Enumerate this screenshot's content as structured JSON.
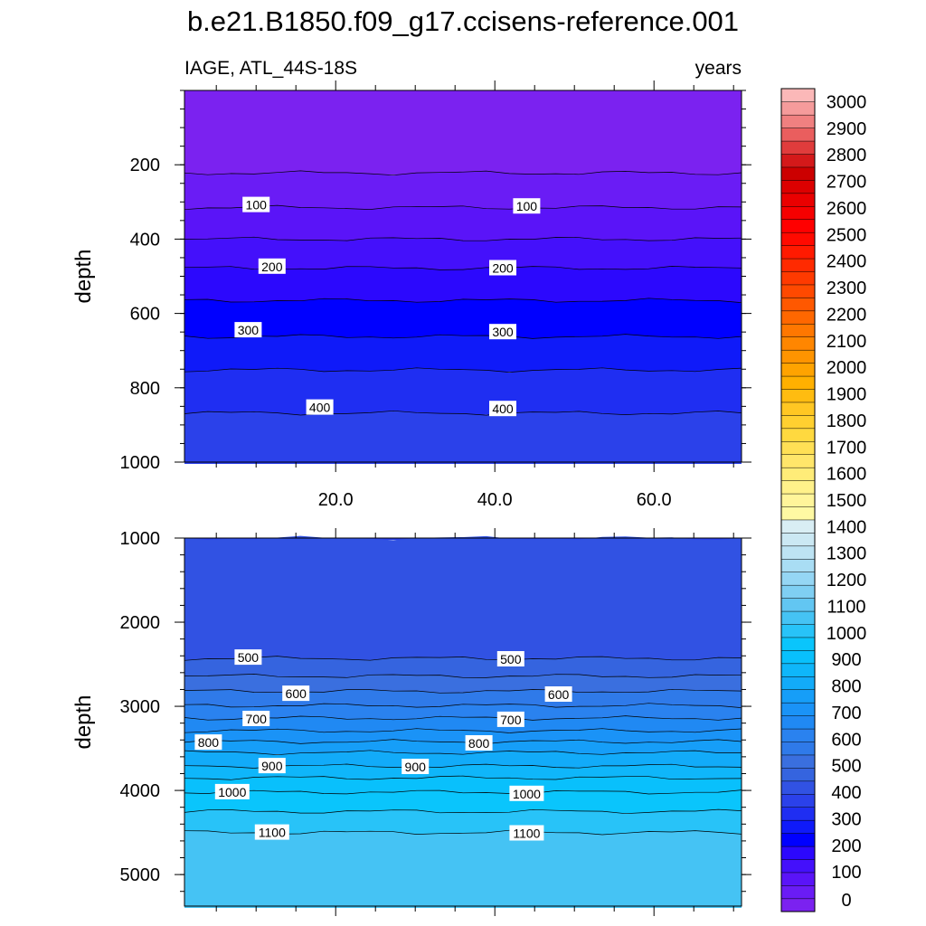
{
  "chart_data": {
    "type": "contour",
    "title": "b.e21.B1850.f09_g17.ccisens-reference.001",
    "subtitle_left": "IAGE, ATL_44S-18S",
    "subtitle_right": "years",
    "ylabel": "depth",
    "xlim": [
      1,
      71
    ],
    "x_ticks": [
      20,
      40,
      60
    ],
    "x_tick_labels": [
      "20.0",
      "40.0",
      "60.0"
    ],
    "top_panel": {
      "ylim": [
        0,
        1000
      ],
      "y_ticks": [
        200,
        400,
        600,
        800,
        1000
      ],
      "y_tick_labels": [
        "200",
        "400",
        "600",
        "800",
        "1000"
      ],
      "contour_depths": [
        {
          "level": 50,
          "depth": 222
        },
        {
          "level": 100,
          "depth": 315
        },
        {
          "level": 150,
          "depth": 400
        },
        {
          "level": 200,
          "depth": 478
        },
        {
          "level": 250,
          "depth": 565
        },
        {
          "level": 300,
          "depth": 662
        },
        {
          "level": 350,
          "depth": 752
        },
        {
          "level": 400,
          "depth": 868
        }
      ],
      "contour_labels": [
        {
          "text": "100",
          "x": 10,
          "depth": 308
        },
        {
          "text": "100",
          "x": 44,
          "depth": 312
        },
        {
          "text": "200",
          "x": 12,
          "depth": 474
        },
        {
          "text": "200",
          "x": 41,
          "depth": 478
        },
        {
          "text": "300",
          "x": 9,
          "depth": 645
        },
        {
          "text": "300",
          "x": 41,
          "depth": 650
        },
        {
          "text": "400",
          "x": 18,
          "depth": 853
        },
        {
          "text": "400",
          "x": 41,
          "depth": 857
        }
      ]
    },
    "bottom_panel": {
      "ylim": [
        1000,
        5375
      ],
      "y_ticks": [
        1000,
        2000,
        3000,
        4000,
        5000
      ],
      "y_tick_labels": [
        "1000",
        "2000",
        "3000",
        "4000",
        "5000"
      ],
      "contour_depths": [
        {
          "level": 450,
          "depth": 1000
        },
        {
          "level": 500,
          "depth": 2430
        },
        {
          "level": 550,
          "depth": 2640
        },
        {
          "level": 600,
          "depth": 2820
        },
        {
          "level": 650,
          "depth": 2990
        },
        {
          "level": 700,
          "depth": 3140
        },
        {
          "level": 750,
          "depth": 3290
        },
        {
          "level": 800,
          "depth": 3420
        },
        {
          "level": 850,
          "depth": 3550
        },
        {
          "level": 900,
          "depth": 3710
        },
        {
          "level": 950,
          "depth": 3850
        },
        {
          "level": 1000,
          "depth": 4020
        },
        {
          "level": 1050,
          "depth": 4250
        },
        {
          "level": 1100,
          "depth": 4500
        }
      ],
      "contour_labels": [
        {
          "text": "500",
          "x": 9,
          "depth": 2420
        },
        {
          "text": "500",
          "x": 42,
          "depth": 2440
        },
        {
          "text": "600",
          "x": 15,
          "depth": 2850
        },
        {
          "text": "600",
          "x": 48,
          "depth": 2860
        },
        {
          "text": "700",
          "x": 10,
          "depth": 3150
        },
        {
          "text": "700",
          "x": 42,
          "depth": 3160
        },
        {
          "text": "800",
          "x": 4,
          "depth": 3430
        },
        {
          "text": "800",
          "x": 38,
          "depth": 3440
        },
        {
          "text": "900",
          "x": 12,
          "depth": 3710
        },
        {
          "text": "900",
          "x": 30,
          "depth": 3720
        },
        {
          "text": "1000",
          "x": 7,
          "depth": 4020
        },
        {
          "text": "1000",
          "x": 44,
          "depth": 4040
        },
        {
          "text": "1100",
          "x": 12,
          "depth": 4500
        },
        {
          "text": "1100",
          "x": 44,
          "depth": 4510
        }
      ]
    },
    "colorbar": {
      "levels": [
        0,
        100,
        200,
        300,
        400,
        500,
        600,
        700,
        800,
        900,
        1000,
        1100,
        1200,
        1300,
        1400,
        1500,
        1600,
        1700,
        1800,
        1900,
        2000,
        2100,
        2200,
        2300,
        2400,
        2500,
        2600,
        2700,
        2800,
        2900,
        3000
      ],
      "labels": [
        "0",
        "100",
        "200",
        "300",
        "400",
        "500",
        "600",
        "700",
        "800",
        "900",
        "1000",
        "1100",
        "1200",
        "1300",
        "1400",
        "1500",
        "1600",
        "1700",
        "1800",
        "1900",
        "2000",
        "2100",
        "2200",
        "2300",
        "2400",
        "2500",
        "2600",
        "2700",
        "2800",
        "2900",
        "3000"
      ],
      "colors": [
        "#7b22f0",
        "#6a1cf5",
        "#5a14f8",
        "#4410fb",
        "#2c08fd",
        "#0000ff",
        "#0f1af9",
        "#1f2ef2",
        "#2b41ea",
        "#3152e3",
        "#3564df",
        "#3a6fdf",
        "#2f7ae9",
        "#2a82ef",
        "#2089f3",
        "#1a93f7",
        "#169ef8",
        "#12abf9",
        "#0fb6fa",
        "#09c0fc",
        "#0ac5fc",
        "#28c3f8",
        "#45c3f4",
        "#62c6f2",
        "#7fcff3",
        "#95d6f4",
        "#a9ddf4",
        "#bde3f3",
        "#cbe8f3",
        "#d9eef4",
        "#fff9a3",
        "#fff59a",
        "#fff18a",
        "#ffec78",
        "#ffe66a",
        "#ffe055",
        "#ffd93f",
        "#ffd030",
        "#ffc723",
        "#ffbc10",
        "#ffb000",
        "#ffa300",
        "#ff9400",
        "#ff8600",
        "#ff7700",
        "#ff6700",
        "#ff5800",
        "#ff4900",
        "#ff3a00",
        "#ff2a00",
        "#ff1a00",
        "#ff0a00",
        "#ff0000",
        "#f60000",
        "#ea0000",
        "#dc0000",
        "#cc0000",
        "#d4191a",
        "#e03c3c",
        "#ea5e5e",
        "#f08080",
        "#f59b9b",
        "#fbb8b8"
      ]
    }
  }
}
